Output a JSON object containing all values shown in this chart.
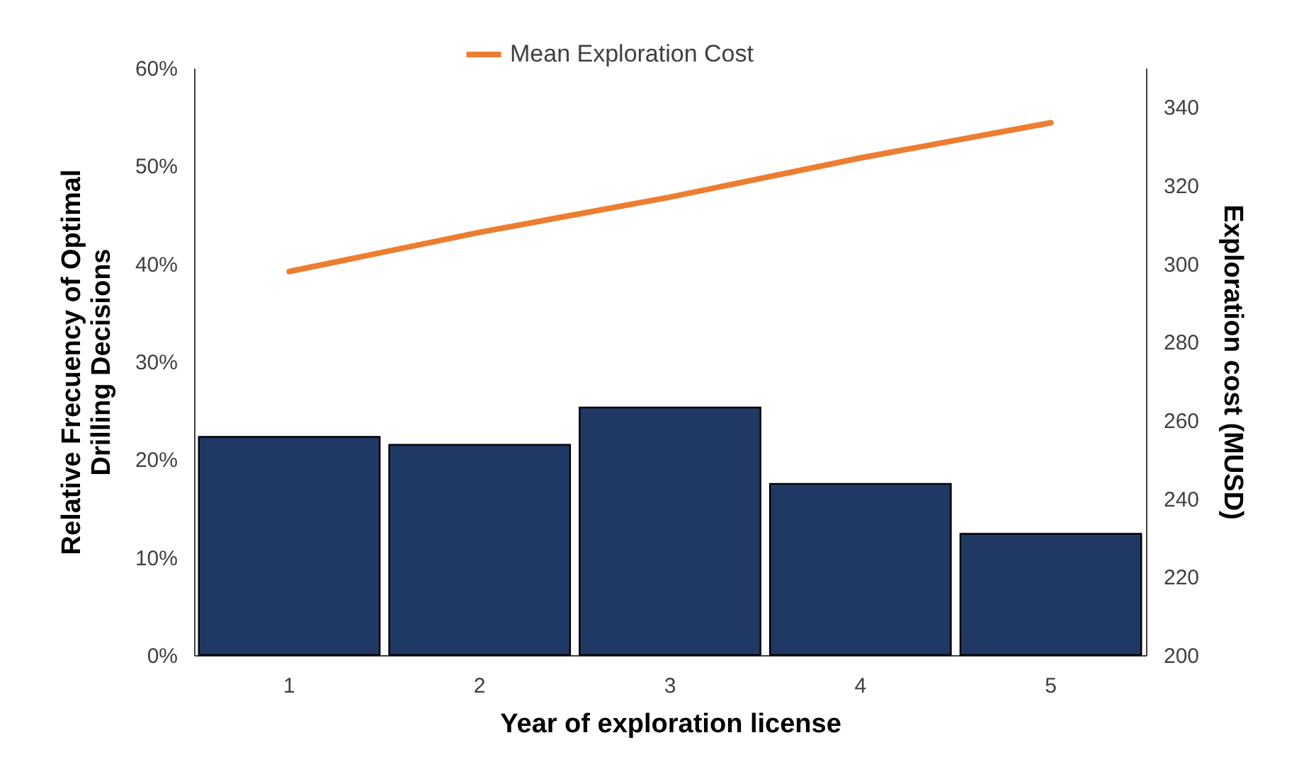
{
  "chart_data": {
    "type": "bar",
    "xlabel": "Year of exploration license",
    "ylabel": "Relative Frecuency of Optimal\nDrilling Decisions",
    "y2label": "Exploration cost (MUSD)",
    "categories": [
      "1",
      "2",
      "3",
      "4",
      "5"
    ],
    "series": [
      {
        "color": "#203864",
        "values": [
          22.3,
          21.5,
          25.3,
          17.5,
          12.4
        ]
      },
      {
        "type": "line",
        "axis": "y2",
        "name": "Mean Exploration Cost",
        "color": "#ed7d31",
        "values": [
          298,
          308,
          317,
          327,
          336
        ]
      }
    ],
    "ylim": [
      0,
      60
    ],
    "yticks": [
      {
        "value": 0,
        "label": "0%"
      },
      {
        "value": 10,
        "label": "10%"
      },
      {
        "value": 20,
        "label": "20%"
      },
      {
        "value": 30,
        "label": "30%"
      },
      {
        "value": 40,
        "label": "40%"
      },
      {
        "value": 50,
        "label": "50%"
      },
      {
        "value": 60,
        "label": "60%"
      }
    ],
    "y2lim": [
      200,
      350
    ],
    "y2ticks": [
      200,
      220,
      240,
      260,
      280,
      300,
      320,
      340
    ],
    "grid": false,
    "legend": "top",
    "marker": "none",
    "line_style": "solid"
  }
}
